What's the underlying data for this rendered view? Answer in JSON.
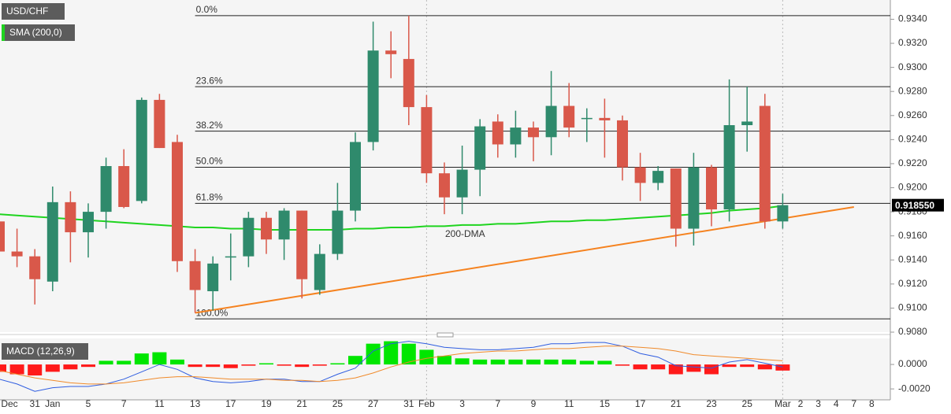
{
  "chart_data": [
    {
      "type": "candlestick",
      "title": "USD/CHF",
      "categories": [
        "Dec",
        null,
        "31",
        "Jan",
        null,
        "5",
        null,
        "7",
        null,
        "11",
        null,
        "13",
        null,
        "17",
        null,
        "19",
        null,
        "21",
        null,
        "25",
        null,
        "27",
        null,
        "31",
        "Feb",
        null,
        "3",
        null,
        "7",
        null,
        "9",
        null,
        "11",
        null,
        "15",
        null,
        "17",
        null,
        "21",
        null,
        "23",
        null,
        "25",
        null,
        "Mar",
        "2",
        "3",
        "4",
        "7",
        "8"
      ],
      "open": [
        0.9172,
        0.9147,
        0.9143,
        0.9122,
        0.9188,
        0.9163,
        0.918,
        0.9218,
        0.9189,
        0.9273,
        0.9238,
        0.9139,
        0.9114,
        0.9142,
        0.9143,
        0.9175,
        0.9157,
        0.9181,
        0.9115,
        0.9145,
        0.9181,
        0.9238,
        0.9314,
        0.9307,
        0.9267,
        0.9212,
        0.9192,
        0.9215,
        0.9255,
        0.9236,
        0.925,
        0.9242,
        0.9268,
        0.9257,
        0.9258,
        0.9256,
        0.9217,
        0.9204,
        0.9216,
        0.9166,
        0.9217,
        0.9182,
        0.9252,
        0.9268,
        0.9172,
        null,
        null,
        null,
        null,
        null
      ],
      "high": [
        0.9201,
        0.9166,
        0.9149,
        0.9201,
        0.9197,
        0.9187,
        0.9225,
        0.9232,
        0.9275,
        0.9278,
        0.9244,
        0.9149,
        0.9143,
        0.9162,
        0.918,
        0.918,
        0.9183,
        0.9181,
        0.9153,
        0.9204,
        0.9246,
        0.9338,
        0.933,
        0.9343,
        0.9277,
        0.9221,
        0.9235,
        0.9257,
        0.9261,
        0.9264,
        0.9255,
        0.9297,
        0.9287,
        0.9266,
        0.9274,
        0.926,
        0.9229,
        0.9218,
        0.9216,
        0.9229,
        0.9219,
        0.929,
        0.9284,
        0.9278,
        0.9195,
        null,
        null,
        null,
        null,
        null
      ],
      "low": [
        0.9128,
        0.9134,
        0.9103,
        0.9114,
        0.9138,
        0.9142,
        0.9166,
        0.9183,
        0.9187,
        0.9233,
        0.913,
        0.9096,
        0.9098,
        0.9123,
        0.9134,
        0.9145,
        0.914,
        0.9108,
        0.9111,
        0.914,
        0.9172,
        0.9231,
        0.9291,
        0.9252,
        0.9204,
        0.9178,
        0.9178,
        0.9193,
        0.9225,
        0.9225,
        0.9222,
        0.9227,
        0.9242,
        0.9238,
        0.9225,
        0.9206,
        0.9189,
        0.9198,
        0.9151,
        0.9152,
        0.9168,
        0.9172,
        0.923,
        0.9166,
        0.9166,
        null,
        null,
        null,
        null,
        null
      ],
      "close": [
        0.9147,
        0.9143,
        0.9124,
        0.9188,
        0.9163,
        0.918,
        0.9218,
        0.9184,
        0.9273,
        0.9233,
        0.9139,
        0.9115,
        0.9137,
        0.9143,
        0.9175,
        0.9157,
        0.9181,
        0.9124,
        0.9145,
        0.9181,
        0.9238,
        0.9314,
        0.9311,
        0.9267,
        0.9212,
        0.9192,
        0.9215,
        0.9251,
        0.9236,
        0.925,
        0.9242,
        0.9268,
        0.925,
        0.9258,
        0.9256,
        0.9217,
        0.9204,
        0.9214,
        0.9166,
        0.9217,
        0.9182,
        0.9252,
        0.9255,
        0.9172,
        0.91855,
        null,
        null,
        null,
        null,
        null
      ],
      "up_color": "#2f8a6c",
      "down_color": "#d9584a",
      "sma": {
        "name": "SMA (200,0)",
        "color": "#1fd41f",
        "values": [
          0.9178,
          0.9177,
          0.9176,
          0.9175,
          0.9174,
          0.9173,
          0.9172,
          0.9171,
          0.917,
          0.9169,
          0.9168,
          0.9167,
          0.9167,
          0.9166,
          0.9166,
          0.9165,
          0.9165,
          0.9165,
          0.9165,
          0.9165,
          0.9166,
          0.9166,
          0.9167,
          0.9167,
          0.9168,
          0.9168,
          0.9169,
          0.9169,
          0.917,
          0.917,
          0.9171,
          0.9172,
          0.9172,
          0.9173,
          0.9173,
          0.9174,
          0.9175,
          0.9176,
          0.9177,
          0.9178,
          0.9179,
          0.9181,
          0.9182,
          0.9183,
          0.9185,
          null,
          null,
          null,
          null,
          null
        ]
      },
      "annotation": "200-DMA",
      "trend_line": {
        "color": "#f5821f",
        "x": [
          11,
          48
        ],
        "y": [
          0.9096,
          0.9184
        ]
      },
      "fib_levels": [
        {
          "label": "0.0%",
          "value": 0.9343
        },
        {
          "label": "23.6%",
          "value": 0.9284
        },
        {
          "label": "38.2%",
          "value": 0.9247
        },
        {
          "label": "50.0%",
          "value": 0.9217
        },
        {
          "label": "61.8%",
          "value": 0.9187
        },
        {
          "label": "100.0%",
          "value": 0.9091
        }
      ],
      "last_price": {
        "value": 0.91855,
        "label": "0.918550"
      },
      "ylim": [
        0.908,
        0.9356
      ],
      "yticks": [
        {
          "value": 0.908,
          "label": "0.9080"
        },
        {
          "value": 0.91,
          "label": "0.9100"
        },
        {
          "value": 0.912,
          "label": "0.9120"
        },
        {
          "value": 0.914,
          "label": "0.9140"
        },
        {
          "value": 0.916,
          "label": "0.9160"
        },
        {
          "value": 0.918,
          "label": "0.9180"
        },
        {
          "value": 0.92,
          "label": "0.9200"
        },
        {
          "value": 0.922,
          "label": "0.9220"
        },
        {
          "value": 0.924,
          "label": "0.9240"
        },
        {
          "value": 0.926,
          "label": "0.9260"
        },
        {
          "value": 0.928,
          "label": "0.9280"
        },
        {
          "value": 0.93,
          "label": "0.9300"
        },
        {
          "value": 0.932,
          "label": "0.9320"
        },
        {
          "value": 0.934,
          "label": "0.9340"
        }
      ]
    },
    {
      "type": "macd",
      "title": "MACD (12,26,9)",
      "histogram": {
        "up_color": "#00e600",
        "down_color": "#ff1a1a",
        "values": [
          -0.0006,
          -0.0008,
          -0.0009,
          -0.0006,
          -0.0004,
          -0.0002,
          0.0003,
          0.0003,
          0.0009,
          0.001,
          0.0004,
          -0.0002,
          -0.0002,
          -0.0003,
          -0.0001,
          0.0001,
          -0.0001,
          -0.0002,
          -0.0001,
          0.0001,
          0.0007,
          0.0017,
          0.0019,
          0.0017,
          0.0012,
          0.0007,
          0.0005,
          0.0004,
          0.0004,
          0.0004,
          0.0004,
          0.0004,
          0.0004,
          0.0003,
          0.0003,
          -0.0001,
          -0.0004,
          -0.0004,
          -0.0008,
          -0.0006,
          -0.0008,
          -0.0002,
          -0.0002,
          -0.0004,
          -0.0005,
          null,
          null,
          null,
          null,
          null
        ]
      },
      "macd": {
        "color": "#2f5de0",
        "values": [
          -0.0012,
          -0.0016,
          -0.0022,
          -0.0019,
          -0.0018,
          -0.0018,
          -0.0016,
          -0.0012,
          -0.0006,
          0.0,
          -0.0004,
          -0.0011,
          -0.0014,
          -0.0015,
          -0.0014,
          -0.0012,
          -0.0012,
          -0.0014,
          -0.0014,
          -0.0008,
          -0.0003,
          0.0011,
          0.0017,
          0.0019,
          0.0017,
          0.0014,
          0.0013,
          0.0012,
          0.0012,
          0.0013,
          0.0014,
          0.0017,
          0.0017,
          0.0018,
          0.0018,
          0.0015,
          0.0009,
          0.0006,
          -0.0001,
          -0.0002,
          -0.0003,
          0.0002,
          0.0004,
          0.0001,
          -0.0002,
          null,
          null,
          null,
          null,
          null
        ]
      },
      "signal": {
        "color": "#f08a2a",
        "values": [
          -0.0005,
          -0.0008,
          -0.0011,
          -0.0013,
          -0.0015,
          -0.0016,
          -0.0016,
          -0.0015,
          -0.0013,
          -0.0011,
          -0.001,
          -0.001,
          -0.0011,
          -0.0012,
          -0.0012,
          -0.0012,
          -0.0013,
          -0.0013,
          -0.0014,
          -0.0013,
          -0.0011,
          -0.0007,
          -0.0002,
          0.0002,
          0.0005,
          0.0007,
          0.0009,
          0.001,
          0.0011,
          0.0011,
          0.0012,
          0.0013,
          0.0013,
          0.0014,
          0.0015,
          0.0015,
          0.0014,
          0.0013,
          0.0011,
          0.0008,
          0.0007,
          0.0006,
          0.0005,
          0.0004,
          0.0003,
          null,
          null,
          null,
          null,
          null
        ]
      },
      "ylim": [
        -0.0027,
        0.002
      ],
      "yticks": [
        {
          "value": 0,
          "label": "0.0000"
        },
        {
          "value": -0.002,
          "label": "-0.0020"
        }
      ]
    }
  ]
}
